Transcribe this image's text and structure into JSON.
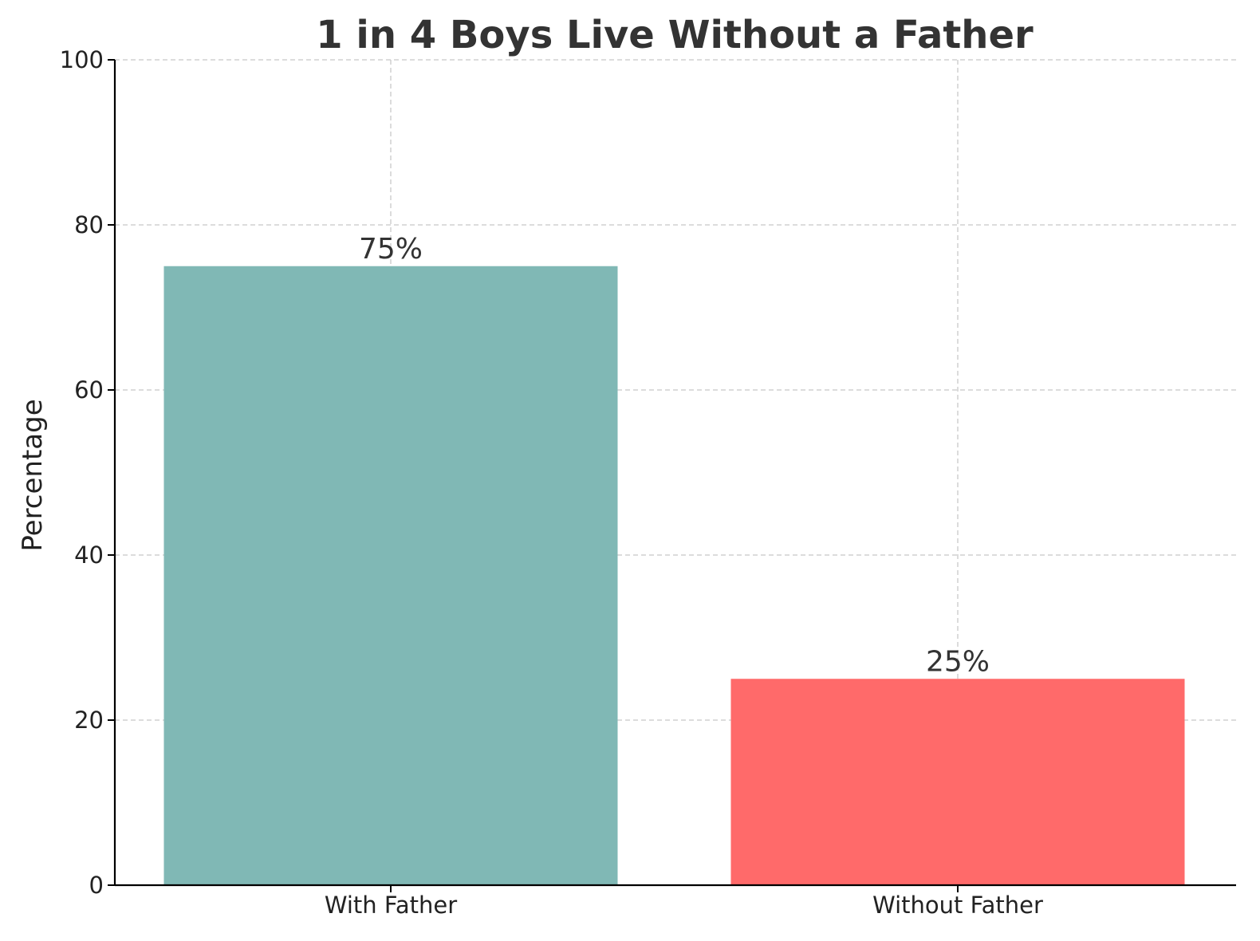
{
  "chart_data": {
    "type": "bar",
    "title": "1 in 4 Boys Live Without a Father",
    "xlabel": "",
    "ylabel": "Percentage",
    "categories": [
      "With Father",
      "Without Father"
    ],
    "values": [
      75,
      25
    ],
    "data_labels": [
      "75%",
      "25%"
    ],
    "colors": [
      "#80b8b5",
      "#ff6a6a"
    ],
    "ylim": [
      0,
      100
    ],
    "yticks": [
      0,
      20,
      40,
      60,
      80,
      100
    ],
    "grid": true,
    "legend": "none"
  }
}
